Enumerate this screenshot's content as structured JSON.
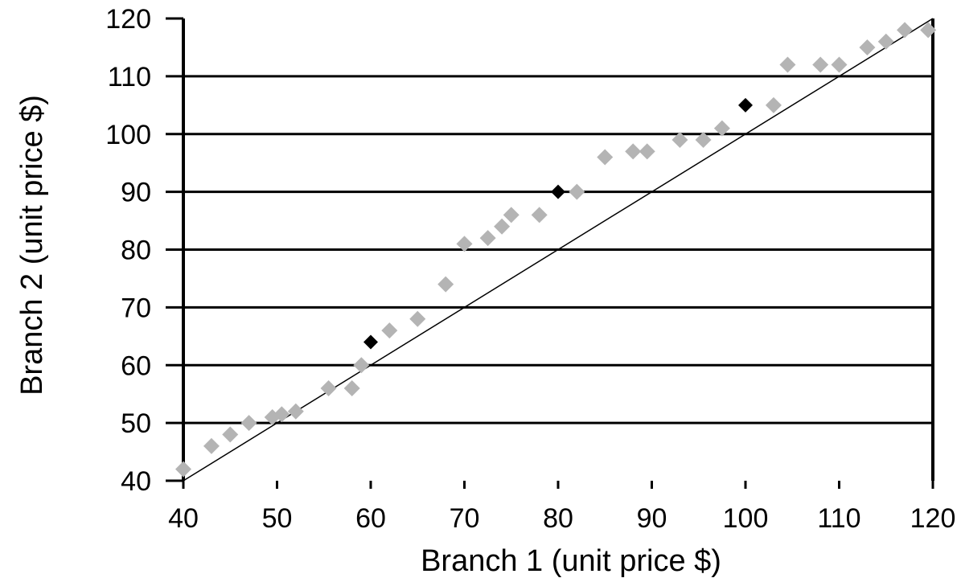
{
  "chart_data": {
    "type": "scatter",
    "xlabel": "Branch 1 (unit price $)",
    "ylabel": "Branch 2 (unit price $)",
    "xlim": [
      40,
      120
    ],
    "ylim": [
      40,
      120
    ],
    "x_ticks": [
      40,
      50,
      60,
      70,
      80,
      90,
      100,
      110,
      120
    ],
    "y_ticks": [
      40,
      50,
      60,
      70,
      80,
      90,
      100,
      110,
      120
    ],
    "x_tick_labels": [
      "40",
      "50",
      "60",
      "70",
      "80",
      "90",
      "100",
      "110",
      "120"
    ],
    "y_tick_labels": [
      "40",
      "50",
      "60",
      "70",
      "80",
      "90",
      "100",
      "110",
      "120"
    ],
    "grid": "horizontal",
    "reference_line": {
      "from": [
        40,
        40
      ],
      "to": [
        120,
        120
      ],
      "color": "#000000"
    },
    "series": [
      {
        "color": "#b4b4b4",
        "points": [
          [
            40,
            42
          ],
          [
            43,
            46
          ],
          [
            45,
            48
          ],
          [
            47,
            50
          ],
          [
            49.5,
            51
          ],
          [
            50.5,
            51.5
          ],
          [
            52,
            52
          ],
          [
            55.5,
            56
          ],
          [
            58,
            56
          ],
          [
            59,
            60
          ],
          [
            62,
            66
          ],
          [
            65,
            68
          ],
          [
            68,
            74
          ],
          [
            70,
            81
          ],
          [
            72.5,
            82
          ],
          [
            74,
            84
          ],
          [
            75,
            86
          ],
          [
            78,
            86
          ],
          [
            82,
            90
          ],
          [
            85,
            96
          ],
          [
            88,
            97
          ],
          [
            89.5,
            97
          ],
          [
            93,
            99
          ],
          [
            95.5,
            99
          ],
          [
            97.5,
            101
          ],
          [
            103,
            105
          ],
          [
            104.5,
            112
          ],
          [
            108,
            112
          ],
          [
            110,
            112
          ],
          [
            113,
            115
          ],
          [
            115,
            116
          ],
          [
            117,
            118
          ],
          [
            119.5,
            118
          ]
        ]
      },
      {
        "color": "#000000",
        "points": [
          [
            60,
            64
          ],
          [
            80,
            90
          ],
          [
            100,
            105
          ]
        ]
      }
    ]
  }
}
